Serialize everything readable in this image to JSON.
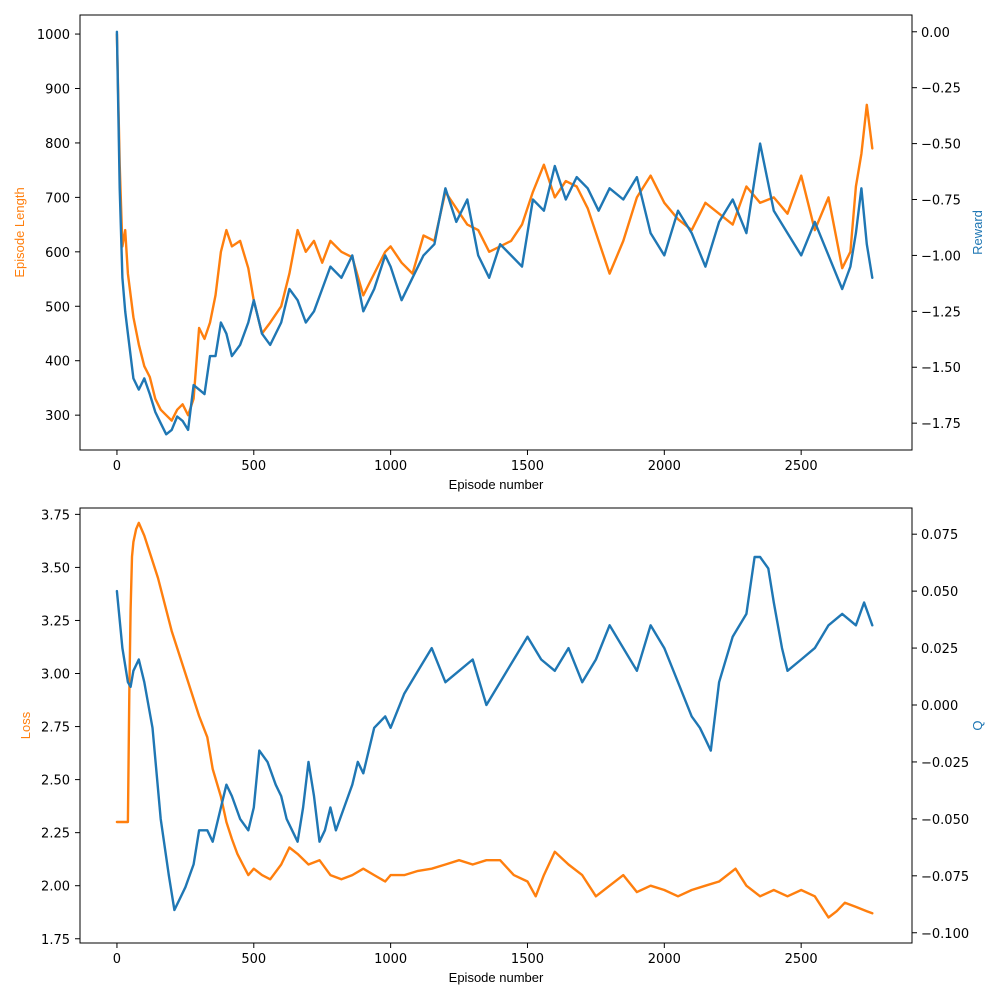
{
  "colors": {
    "orange": "#ff7f0e",
    "blue": "#1f77b4"
  },
  "chart_data": [
    {
      "type": "line",
      "xlabel": "Episode number",
      "xlim": [
        -135,
        2905
      ],
      "xticks": [
        0,
        500,
        1000,
        1500,
        2000,
        2500
      ],
      "left_axis": {
        "label": "Episode Length",
        "ylim": [
          236,
          1035
        ],
        "ticks": [
          300,
          400,
          500,
          600,
          700,
          800,
          900,
          1000
        ]
      },
      "right_axis": {
        "label": "Reward",
        "ylim": [
          -1.87,
          0.075
        ],
        "ticks": [
          0.0,
          -0.25,
          -0.5,
          -0.75,
          -1.0,
          -1.25,
          -1.5,
          -1.75
        ],
        "tick_labels": [
          "0.00",
          "−0.25",
          "−0.50",
          "−0.75",
          "−1.00",
          "−1.25",
          "−1.50",
          "−1.75"
        ]
      },
      "series": [
        {
          "name": "Episode Length",
          "axis": "left",
          "color": "#ff7f0e",
          "x": [
            0,
            10,
            20,
            30,
            40,
            60,
            80,
            100,
            120,
            140,
            160,
            180,
            200,
            220,
            240,
            260,
            280,
            300,
            320,
            340,
            360,
            380,
            400,
            420,
            450,
            480,
            500,
            530,
            560,
            600,
            630,
            660,
            690,
            720,
            750,
            780,
            820,
            860,
            900,
            940,
            980,
            1000,
            1040,
            1080,
            1120,
            1160,
            1200,
            1240,
            1280,
            1320,
            1360,
            1400,
            1440,
            1480,
            1520,
            1560,
            1600,
            1640,
            1680,
            1720,
            1760,
            1800,
            1850,
            1900,
            1950,
            2000,
            2050,
            2100,
            2150,
            2200,
            2250,
            2300,
            2350,
            2400,
            2450,
            2500,
            2550,
            2600,
            2650,
            2680,
            2700,
            2720,
            2740,
            2760
          ],
          "values": [
            1000,
            760,
            610,
            640,
            560,
            480,
            430,
            390,
            370,
            330,
            310,
            300,
            290,
            310,
            320,
            300,
            330,
            460,
            440,
            470,
            520,
            600,
            640,
            610,
            620,
            570,
            510,
            450,
            470,
            500,
            560,
            640,
            600,
            620,
            580,
            620,
            600,
            590,
            520,
            560,
            600,
            610,
            580,
            560,
            630,
            620,
            710,
            680,
            650,
            640,
            600,
            610,
            620,
            650,
            710,
            760,
            700,
            730,
            720,
            680,
            620,
            560,
            620,
            700,
            740,
            690,
            660,
            640,
            690,
            670,
            650,
            720,
            690,
            700,
            670,
            740,
            640,
            700,
            570,
            600,
            720,
            780,
            870,
            790
          ]
        },
        {
          "name": "Reward",
          "axis": "right",
          "color": "#1f77b4",
          "x": [
            0,
            10,
            20,
            30,
            40,
            60,
            80,
            100,
            120,
            140,
            160,
            180,
            200,
            220,
            240,
            260,
            280,
            300,
            320,
            340,
            360,
            380,
            400,
            420,
            450,
            480,
            500,
            530,
            560,
            600,
            630,
            660,
            690,
            720,
            750,
            780,
            820,
            860,
            900,
            940,
            980,
            1000,
            1040,
            1080,
            1120,
            1160,
            1200,
            1240,
            1280,
            1320,
            1360,
            1400,
            1440,
            1480,
            1520,
            1560,
            1600,
            1640,
            1680,
            1720,
            1760,
            1800,
            1850,
            1900,
            1950,
            2000,
            2050,
            2100,
            2150,
            2200,
            2250,
            2300,
            2350,
            2400,
            2450,
            2500,
            2550,
            2600,
            2650,
            2680,
            2700,
            2720,
            2740,
            2760
          ],
          "values": [
            0.0,
            -0.7,
            -1.1,
            -1.25,
            -1.35,
            -1.55,
            -1.6,
            -1.55,
            -1.62,
            -1.7,
            -1.75,
            -1.8,
            -1.78,
            -1.72,
            -1.74,
            -1.78,
            -1.58,
            -1.6,
            -1.62,
            -1.45,
            -1.45,
            -1.3,
            -1.35,
            -1.45,
            -1.4,
            -1.3,
            -1.2,
            -1.35,
            -1.4,
            -1.3,
            -1.15,
            -1.2,
            -1.3,
            -1.25,
            -1.15,
            -1.05,
            -1.1,
            -1.0,
            -1.25,
            -1.15,
            -1.0,
            -1.05,
            -1.2,
            -1.1,
            -1.0,
            -0.95,
            -0.7,
            -0.85,
            -0.75,
            -1.0,
            -1.1,
            -0.95,
            -1.0,
            -1.05,
            -0.75,
            -0.8,
            -0.6,
            -0.75,
            -0.65,
            -0.7,
            -0.8,
            -0.7,
            -0.75,
            -0.65,
            -0.9,
            -1.0,
            -0.8,
            -0.9,
            -1.05,
            -0.85,
            -0.75,
            -0.9,
            -0.5,
            -0.8,
            -0.9,
            -1.0,
            -0.85,
            -1.0,
            -1.15,
            -1.05,
            -0.9,
            -0.7,
            -0.95,
            -1.1
          ]
        }
      ]
    },
    {
      "type": "line",
      "xlabel": "Episode number",
      "xlim": [
        -135,
        2905
      ],
      "xticks": [
        0,
        500,
        1000,
        1500,
        2000,
        2500
      ],
      "left_axis": {
        "label": "Loss",
        "ylim": [
          1.73,
          3.78
        ],
        "ticks": [
          1.75,
          2.0,
          2.25,
          2.5,
          2.75,
          3.0,
          3.25,
          3.5,
          3.75
        ],
        "tick_labels": [
          "1.75",
          "2.00",
          "2.25",
          "2.50",
          "2.75",
          "3.00",
          "3.25",
          "3.50",
          "3.75"
        ]
      },
      "right_axis": {
        "label": "Q",
        "ylim": [
          -0.1045,
          0.0865
        ],
        "ticks": [
          0.075,
          0.05,
          0.025,
          0.0,
          -0.025,
          -0.05,
          -0.075,
          -0.1
        ],
        "tick_labels": [
          "0.075",
          "0.050",
          "0.025",
          "0.000",
          "−0.025",
          "−0.050",
          "−0.075",
          "−0.100"
        ]
      },
      "series": [
        {
          "name": "Loss",
          "axis": "left",
          "color": "#ff7f0e",
          "x": [
            0,
            20,
            38,
            40,
            45,
            50,
            55,
            60,
            70,
            80,
            100,
            150,
            200,
            250,
            300,
            330,
            350,
            380,
            400,
            420,
            440,
            460,
            480,
            500,
            530,
            560,
            600,
            630,
            660,
            700,
            740,
            780,
            820,
            860,
            900,
            940,
            980,
            1000,
            1050,
            1100,
            1150,
            1200,
            1250,
            1300,
            1350,
            1400,
            1450,
            1500,
            1530,
            1560,
            1600,
            1650,
            1700,
            1750,
            1800,
            1850,
            1900,
            1950,
            2000,
            2050,
            2100,
            2150,
            2200,
            2260,
            2300,
            2350,
            2400,
            2450,
            2500,
            2550,
            2600,
            2630,
            2660,
            2700,
            2740,
            2760
          ],
          "values": [
            2.3,
            2.3,
            2.3,
            2.3,
            2.9,
            3.3,
            3.55,
            3.62,
            3.68,
            3.71,
            3.65,
            3.45,
            3.2,
            3.0,
            2.8,
            2.7,
            2.55,
            2.42,
            2.3,
            2.22,
            2.15,
            2.1,
            2.05,
            2.08,
            2.05,
            2.03,
            2.1,
            2.18,
            2.15,
            2.1,
            2.12,
            2.05,
            2.03,
            2.05,
            2.08,
            2.05,
            2.02,
            2.05,
            2.05,
            2.07,
            2.08,
            2.1,
            2.12,
            2.1,
            2.12,
            2.12,
            2.05,
            2.02,
            1.95,
            2.05,
            2.16,
            2.1,
            2.05,
            1.95,
            2.0,
            2.05,
            1.97,
            2.0,
            1.98,
            1.95,
            1.98,
            2.0,
            2.02,
            2.08,
            2.0,
            1.95,
            1.98,
            1.95,
            1.98,
            1.95,
            1.85,
            1.88,
            1.92,
            1.9,
            1.88,
            1.87
          ]
        },
        {
          "name": "Q",
          "axis": "right",
          "color": "#1f77b4",
          "x": [
            0,
            20,
            40,
            50,
            60,
            80,
            100,
            130,
            160,
            190,
            210,
            230,
            250,
            280,
            300,
            330,
            350,
            380,
            400,
            420,
            450,
            480,
            500,
            520,
            550,
            580,
            600,
            620,
            640,
            660,
            680,
            700,
            720,
            740,
            760,
            780,
            800,
            830,
            860,
            880,
            900,
            940,
            980,
            1000,
            1050,
            1100,
            1150,
            1200,
            1250,
            1300,
            1350,
            1400,
            1450,
            1500,
            1550,
            1600,
            1650,
            1700,
            1750,
            1800,
            1850,
            1900,
            1950,
            2000,
            2050,
            2100,
            2130,
            2150,
            2170,
            2200,
            2250,
            2300,
            2330,
            2350,
            2380,
            2400,
            2430,
            2450,
            2500,
            2550,
            2600,
            2650,
            2700,
            2730,
            2760
          ],
          "values": [
            0.05,
            0.025,
            0.01,
            0.008,
            0.015,
            0.02,
            0.01,
            -0.01,
            -0.05,
            -0.075,
            -0.09,
            -0.085,
            -0.08,
            -0.07,
            -0.055,
            -0.055,
            -0.06,
            -0.045,
            -0.035,
            -0.04,
            -0.05,
            -0.055,
            -0.045,
            -0.02,
            -0.025,
            -0.035,
            -0.04,
            -0.05,
            -0.055,
            -0.06,
            -0.045,
            -0.025,
            -0.04,
            -0.06,
            -0.055,
            -0.045,
            -0.055,
            -0.045,
            -0.035,
            -0.025,
            -0.03,
            -0.01,
            -0.005,
            -0.01,
            0.005,
            0.015,
            0.025,
            0.01,
            0.015,
            0.02,
            0.0,
            0.01,
            0.02,
            0.03,
            0.02,
            0.015,
            0.025,
            0.01,
            0.02,
            0.035,
            0.025,
            0.015,
            0.035,
            0.025,
            0.01,
            -0.005,
            -0.01,
            -0.015,
            -0.02,
            0.01,
            0.03,
            0.04,
            0.065,
            0.065,
            0.06,
            0.045,
            0.025,
            0.015,
            0.02,
            0.025,
            0.035,
            0.04,
            0.035,
            0.045,
            0.035
          ]
        }
      ]
    }
  ]
}
